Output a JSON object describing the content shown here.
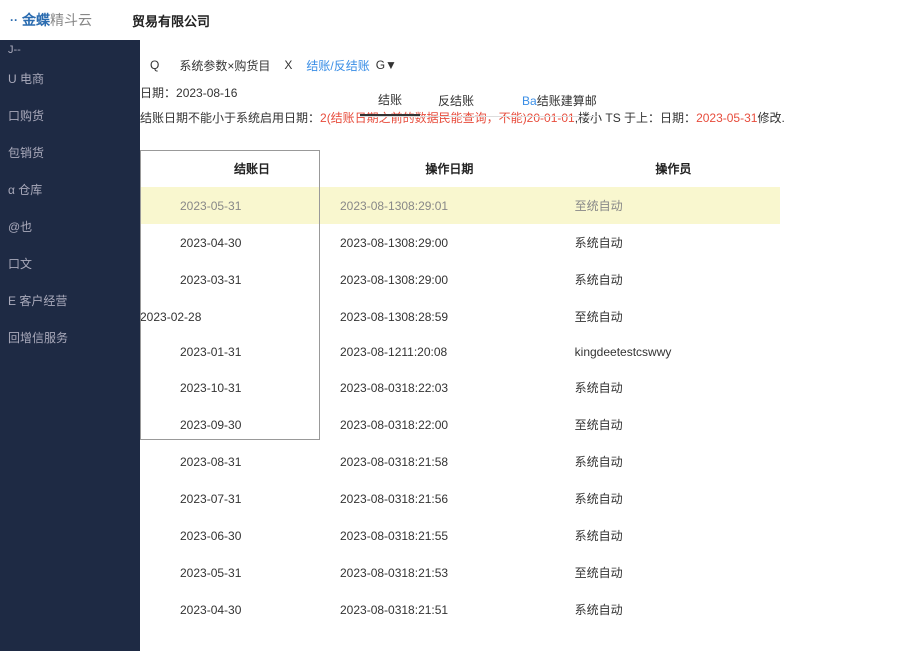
{
  "logo": {
    "dots": "··",
    "brand": "金蝶",
    "sub": "精斗云"
  },
  "company": "贸易有限公司",
  "sidebar": {
    "items": [
      {
        "label": "J--"
      },
      {
        "label": "U 电商"
      },
      {
        "label": "口购货"
      },
      {
        "label": "包销货"
      },
      {
        "label": "α 仓库"
      },
      {
        "label": "@也"
      },
      {
        "label": "口文"
      },
      {
        "label": "E 客户经营"
      },
      {
        "label": "回增信服务"
      }
    ]
  },
  "breadcrumb": {
    "q": "Q",
    "label1": "系统参数×购货目",
    "x": "X",
    "active": "结账/反结账",
    "g": "G▼"
  },
  "date_row": {
    "label": "日期：",
    "value": "2023-08-16"
  },
  "msg": {
    "p1": "结账日期不能小于系统启用日期：",
    "p2": "2(结账日期之前的数据民能查询，不能",
    "p3": ")20-01-01",
    "p4": ",楼小 TS 于上：日期：",
    "p5": "2023-05-31",
    "p6": "修改."
  },
  "tabs": {
    "t1": "结账",
    "t2": "反结账",
    "ba": "Ba",
    "ba_text": "结账建算邮"
  },
  "table": {
    "columns": [
      "结账日",
      "操作日期",
      "操作员"
    ],
    "rows": [
      {
        "d": "2023-05-31",
        "op": "2023-08-1308:29:01",
        "user": "至统自动",
        "hl": true
      },
      {
        "d": "2023-04-30",
        "op": "2023-08-1308:29:00",
        "user": "系统自动"
      },
      {
        "d": "2023-03-31",
        "op": "2023-08-1308:29:00",
        "user": "系统自动"
      },
      {
        "d": "2023-02-28",
        "op": "2023-08-1308:28:59",
        "user": "至统自动",
        "cls": "row-2023-02-28"
      },
      {
        "d": "2023-01-31",
        "op": "2023-08-1211:20:08",
        "user": "kingdeetestcswwy"
      },
      {
        "d": "2023-10-31",
        "op": "2023-08-0318:22:03",
        "user": "系统自动"
      },
      {
        "d": "2023-09-30",
        "op": "2023-08-0318:22:00",
        "user": "至统自动"
      },
      {
        "d": "2023-08-31",
        "op": "2023-08-0318:21:58",
        "user": "系统自动"
      },
      {
        "d": "2023-07-31",
        "op": "2023-08-0318:21:56",
        "user": "系统自动"
      },
      {
        "d": "2023-06-30",
        "op": "2023-08-0318:21:55",
        "user": "系统自动"
      },
      {
        "d": "2023-05-31",
        "op": "2023-08-0318:21:53",
        "user": "至统自动"
      },
      {
        "d": "2023-04-30",
        "op": "2023-08-0318:21:51",
        "user": "系统自动"
      }
    ]
  }
}
